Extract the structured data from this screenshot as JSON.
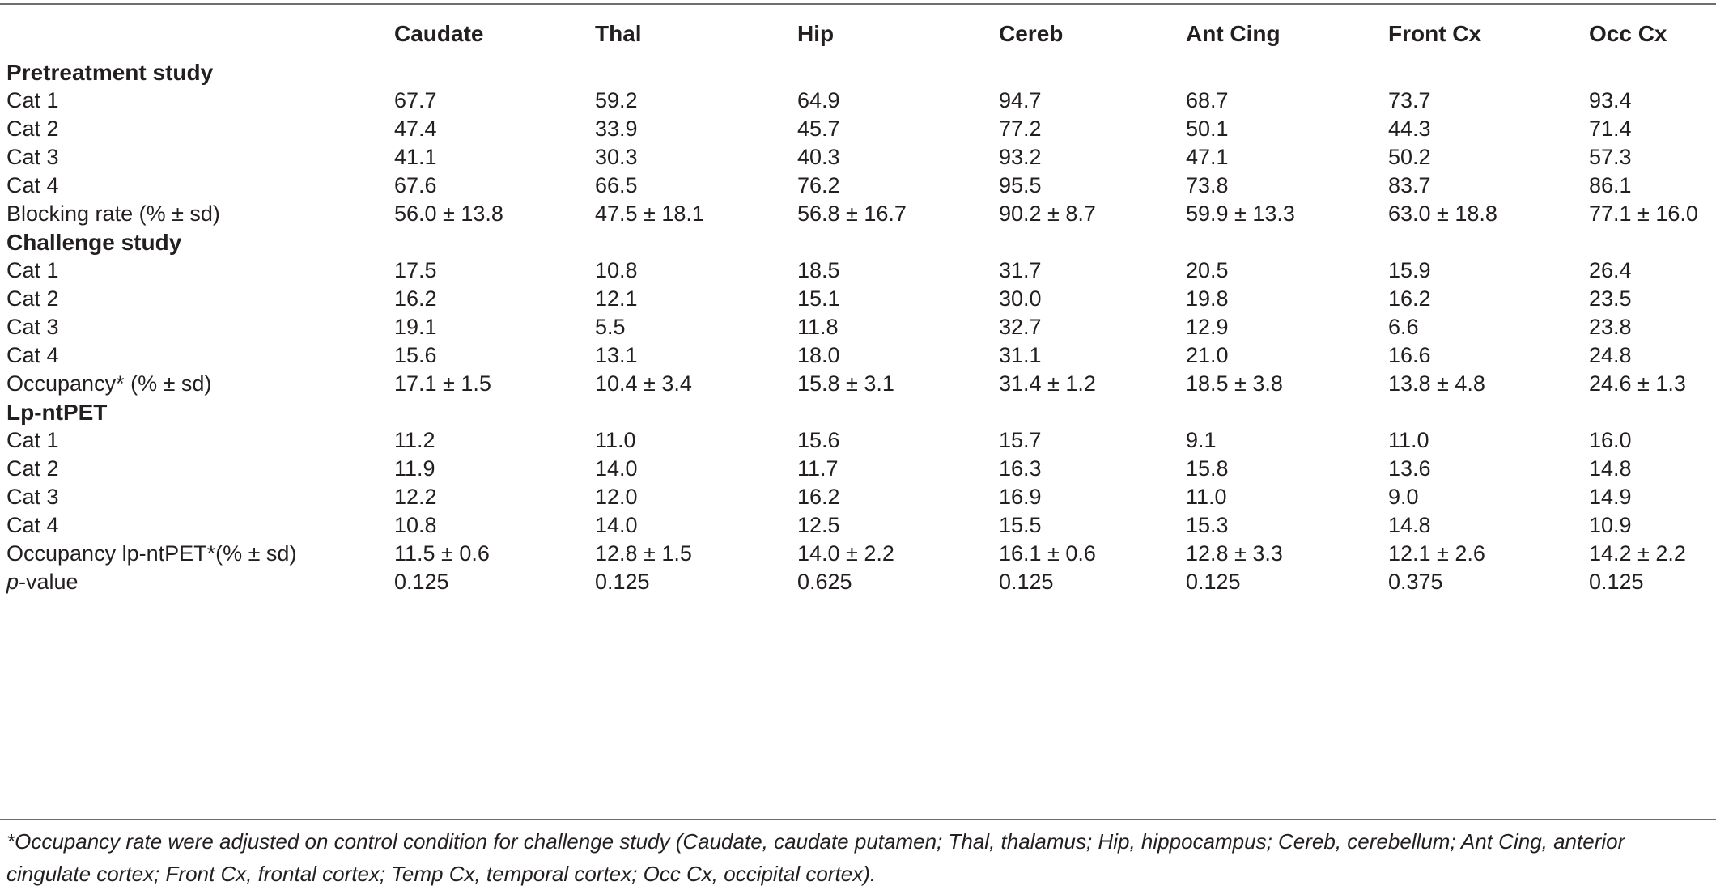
{
  "table": {
    "columns": [
      "",
      "Caudate",
      "Thal",
      "Hip",
      "Cereb",
      "Ant Cing",
      "Front Cx",
      "Occ Cx"
    ],
    "sections": [
      {
        "title": "Pretreatment study",
        "rows": [
          [
            "Cat 1",
            "67.7",
            "59.2",
            "64.9",
            "94.7",
            "68.7",
            "73.7",
            "93.4"
          ],
          [
            "Cat 2",
            "47.4",
            "33.9",
            "45.7",
            "77.2",
            "50.1",
            "44.3",
            "71.4"
          ],
          [
            "Cat 3",
            "41.1",
            "30.3",
            "40.3",
            "93.2",
            "47.1",
            "50.2",
            "57.3"
          ],
          [
            "Cat 4",
            "67.6",
            "66.5",
            "76.2",
            "95.5",
            "73.8",
            "83.7",
            "86.1"
          ],
          [
            "Blocking rate (% ± sd)",
            "56.0 ± 13.8",
            "47.5 ± 18.1",
            "56.8 ± 16.7",
            "90.2 ± 8.7",
            "59.9 ± 13.3",
            "63.0 ± 18.8",
            "77.1 ± 16.0"
          ]
        ]
      },
      {
        "title": "Challenge study",
        "rows": [
          [
            "Cat 1",
            "17.5",
            "10.8",
            "18.5",
            "31.7",
            "20.5",
            "15.9",
            "26.4"
          ],
          [
            "Cat 2",
            "16.2",
            "12.1",
            "15.1",
            "30.0",
            "19.8",
            "16.2",
            "23.5"
          ],
          [
            "Cat 3",
            "19.1",
            "5.5",
            "11.8",
            "32.7",
            "12.9",
            "6.6",
            "23.8"
          ],
          [
            "Cat 4",
            "15.6",
            "13.1",
            "18.0",
            "31.1",
            "21.0",
            "16.6",
            "24.8"
          ],
          [
            "Occupancy* (% ± sd)",
            "17.1 ± 1.5",
            "10.4 ± 3.4",
            "15.8 ± 3.1",
            "31.4 ± 1.2",
            "18.5 ± 3.8",
            "13.8 ± 4.8",
            "24.6 ± 1.3"
          ]
        ]
      },
      {
        "title": "Lp-ntPET",
        "rows": [
          [
            "Cat 1",
            "11.2",
            "11.0",
            "15.6",
            "15.7",
            "9.1",
            "11.0",
            "16.0"
          ],
          [
            "Cat 2",
            "11.9",
            "14.0",
            "11.7",
            "16.3",
            "15.8",
            "13.6",
            "14.8"
          ],
          [
            "Cat 3",
            "12.2",
            "12.0",
            "16.2",
            "16.9",
            "11.0",
            "9.0",
            "14.9"
          ],
          [
            "Cat 4",
            "10.8",
            "14.0",
            "12.5",
            "15.5",
            "15.3",
            "14.8",
            "10.9"
          ],
          [
            "Occupancy lp-ntPET*(% ± sd)",
            "11.5 ± 0.6",
            "12.8 ± 1.5",
            "14.0 ± 2.2",
            "16.1 ± 0.6",
            "12.8 ± 3.3",
            "12.1 ± 2.6",
            "14.2 ± 2.2"
          ]
        ]
      }
    ],
    "pvalue_row": {
      "label_italic": "p",
      "label_rest": "-value",
      "values": [
        "0.125",
        "0.125",
        "0.625",
        "0.125",
        "0.125",
        "0.375",
        "0.125"
      ]
    },
    "footnote": "*Occupancy rate were adjusted on control condition for challenge study (Caudate, caudate putamen; Thal, thalamus; Hip, hippocampus; Cereb, cerebellum; Ant Cing, anterior cingulate cortex; Front Cx, frontal cortex; Temp Cx, temporal cortex; Occ Cx, occipital cortex)."
  }
}
